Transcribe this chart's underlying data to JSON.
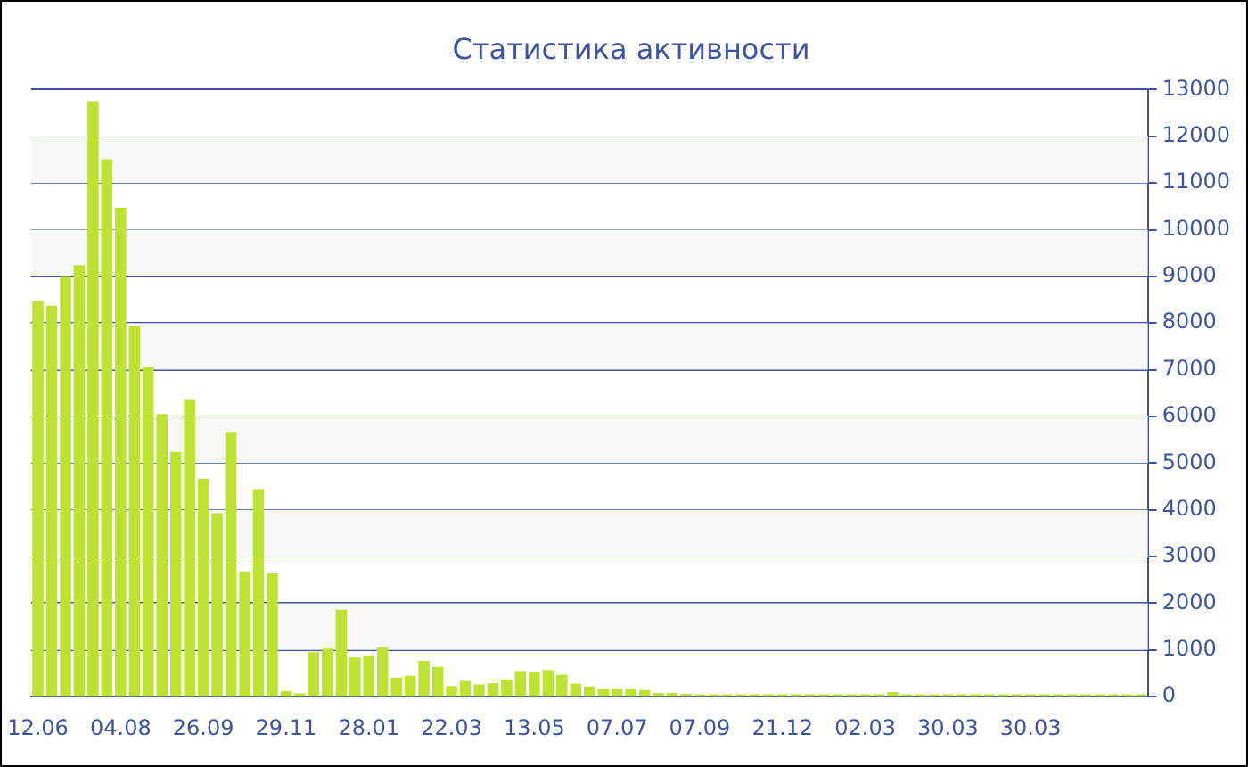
{
  "chart_data": {
    "type": "bar",
    "title": "Статистика активности",
    "categories": [
      "12.06",
      null,
      null,
      null,
      null,
      null,
      "04.08",
      null,
      null,
      null,
      null,
      null,
      "26.09",
      null,
      null,
      null,
      null,
      null,
      "29.11",
      null,
      null,
      null,
      null,
      null,
      "28.01",
      null,
      null,
      null,
      null,
      null,
      "22.03",
      null,
      null,
      null,
      null,
      null,
      "13.05",
      null,
      null,
      null,
      null,
      null,
      "07.07",
      null,
      null,
      null,
      null,
      null,
      "07.09",
      null,
      null,
      null,
      null,
      null,
      "21.12",
      null,
      null,
      null,
      null,
      null,
      "02.03",
      null,
      null,
      null,
      null,
      null,
      "30.03",
      null,
      null,
      null,
      null,
      null,
      "30.03",
      null,
      null,
      null,
      null,
      null,
      null,
      null,
      null
    ],
    "values": [
      8480,
      8370,
      8990,
      9240,
      12750,
      11510,
      10470,
      7940,
      7070,
      6050,
      5240,
      6370,
      4670,
      3930,
      5670,
      2680,
      4450,
      2640,
      120,
      70,
      960,
      1030,
      1860,
      840,
      870,
      1060,
      410,
      450,
      770,
      640,
      230,
      340,
      260,
      290,
      370,
      550,
      520,
      570,
      470,
      280,
      220,
      170,
      170,
      170,
      140,
      80,
      80,
      60,
      50,
      50,
      50,
      50,
      50,
      50,
      50,
      50,
      50,
      50,
      50,
      50,
      50,
      50,
      100,
      50,
      50,
      50,
      50,
      50,
      50,
      50,
      50,
      50,
      50,
      50,
      50,
      50,
      50,
      50,
      50,
      50,
      50
    ],
    "color": "#bde232",
    "ylim": [
      0,
      13000
    ],
    "yticks": [
      0,
      1000,
      2000,
      3000,
      4000,
      5000,
      6000,
      7000,
      8000,
      9000,
      10000,
      11000,
      12000,
      13000
    ],
    "grid": "y"
  }
}
